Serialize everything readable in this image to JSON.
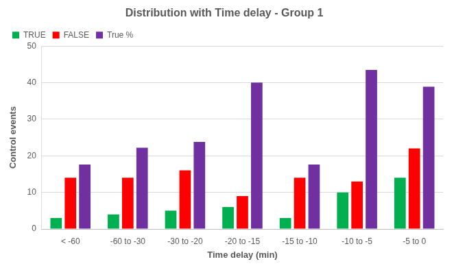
{
  "chart_data": {
    "type": "bar",
    "title": "Distribution with Time delay - Group 1",
    "x_label": "Time delay (min)",
    "y_label": "Control events",
    "categories": [
      "< -60",
      "-60 to -30",
      "-30 to -20",
      "-20 to -15",
      "-15 to -10",
      "-10 to -5",
      "-5 to 0"
    ],
    "series": [
      {
        "name": "TRUE",
        "color": "#00b050",
        "values": [
          3,
          4,
          5,
          6,
          3,
          10,
          14
        ]
      },
      {
        "name": "FALSE",
        "color": "#ff0000",
        "values": [
          14,
          14,
          16,
          9,
          14,
          13,
          22
        ]
      },
      {
        "name": "True %",
        "color": "#7030a0",
        "values": [
          17.6,
          22.2,
          23.8,
          40,
          17.6,
          43.5,
          38.9
        ]
      }
    ],
    "ylim": [
      0,
      50
    ],
    "yticks": [
      0,
      10,
      20,
      30,
      40,
      50
    ],
    "grid": true,
    "legend": "top"
  }
}
